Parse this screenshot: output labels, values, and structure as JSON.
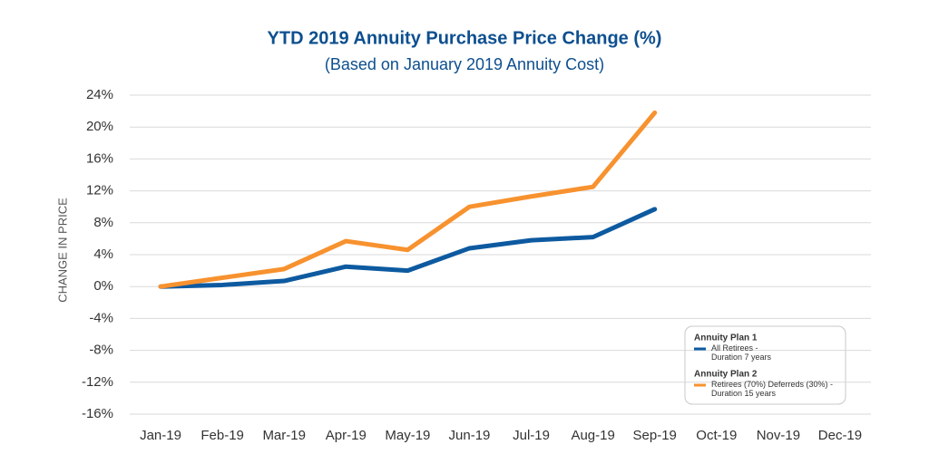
{
  "chart_data": {
    "type": "line",
    "title": "YTD 2019 Annuity Purchase Price Change (%)",
    "subtitle": "(Based on January 2019 Annuity Cost)",
    "y_label": "CHANGE IN PRICE",
    "categories": [
      "Jan-19",
      "Feb-19",
      "Mar-19",
      "Apr-19",
      "May-19",
      "Jun-19",
      "Jul-19",
      "Aug-19",
      "Sep-19",
      "Oct-19",
      "Nov-19",
      "Dec-19"
    ],
    "series": [
      {
        "group": "Annuity Plan 1",
        "name": "All Retirees -\nDuration 7 years",
        "color": "#0d5aa0",
        "values": [
          0,
          0.2,
          0.7,
          2.5,
          2.0,
          4.8,
          5.8,
          6.2,
          9.7,
          null,
          null,
          null
        ]
      },
      {
        "group": "Annuity Plan 2",
        "name": "Retirees (70%) Deferreds (30%) -\nDuration 15 years",
        "color": "#f7922f",
        "values": [
          0,
          1.1,
          2.2,
          5.7,
          4.6,
          10.0,
          11.3,
          12.5,
          21.8,
          null,
          null,
          null
        ]
      }
    ],
    "ylim": [
      -16,
      24
    ],
    "yticks": [
      {
        "value": -16,
        "label": "-16%"
      },
      {
        "value": -12,
        "label": "-12%"
      },
      {
        "value": -8,
        "label": "-8%"
      },
      {
        "value": -4,
        "label": "-4%"
      },
      {
        "value": 0,
        "label": "0%"
      },
      {
        "value": 4,
        "label": "4%"
      },
      {
        "value": 8,
        "label": "8%"
      },
      {
        "value": 12,
        "label": "12%"
      },
      {
        "value": 16,
        "label": "16%"
      },
      {
        "value": 20,
        "label": "20%"
      },
      {
        "value": 24,
        "label": "24%"
      }
    ],
    "grid": true
  }
}
